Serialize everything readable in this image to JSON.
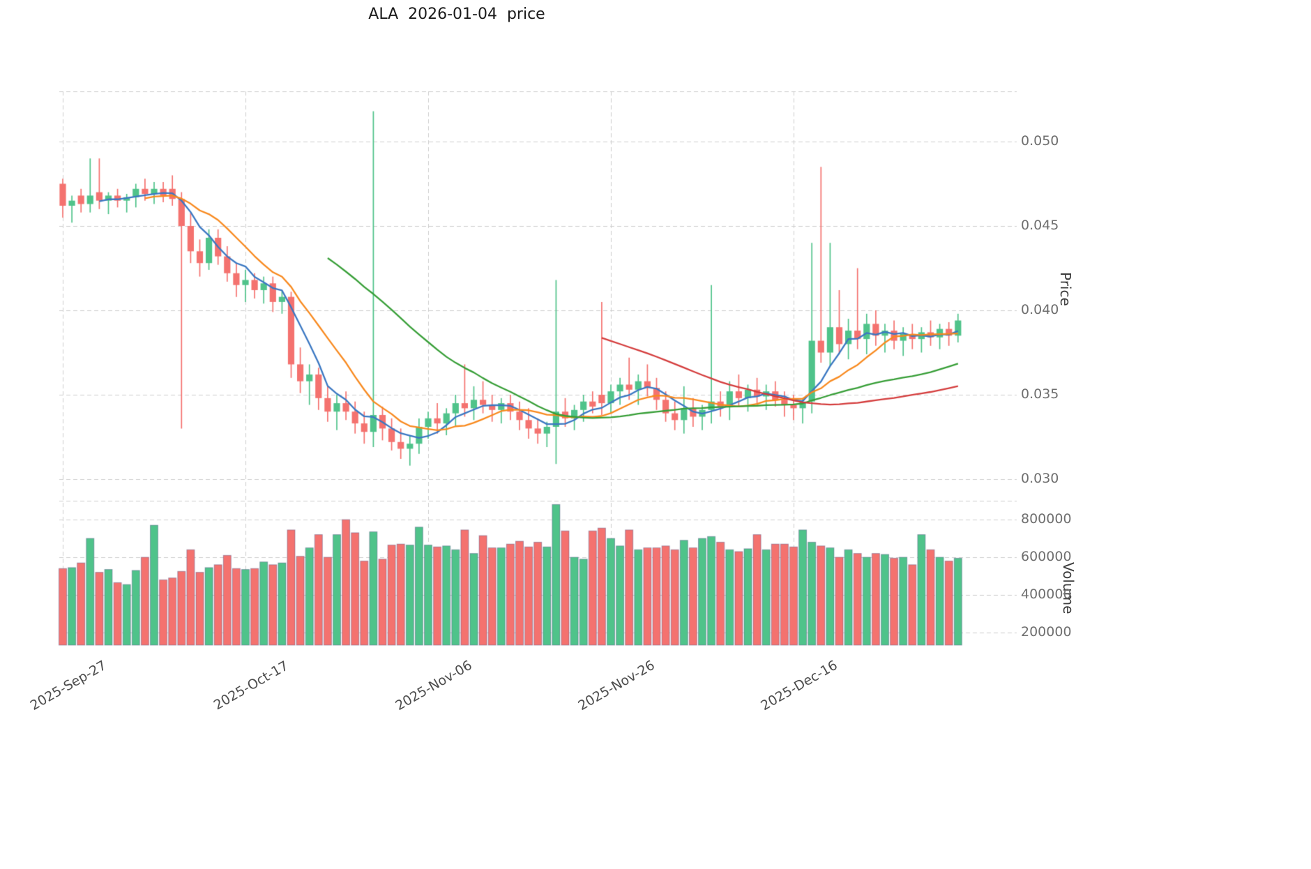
{
  "header": {
    "title": "ALA  2026-01-04  price"
  },
  "chart_data": {
    "type": "candlestick",
    "title": "ALA  2026-01-04  price",
    "panels": [
      "price",
      "volume"
    ],
    "ylabel_right": "Price",
    "volume_label": "Volume",
    "price_axis": {
      "ticks": [
        0.03,
        0.035,
        0.04,
        0.045,
        0.05
      ],
      "decimals": 3
    },
    "volume_axis": {
      "ticks": [
        200000,
        400000,
        600000,
        800000
      ]
    },
    "x_axis": {
      "tick_labels": [
        {
          "label": "2025-Sep-27",
          "candle_index": 0
        },
        {
          "label": "2025-Oct-17",
          "candle_index": 20
        },
        {
          "label": "2025-Nov-06",
          "candle_index": 40
        },
        {
          "label": "2025-Nov-26",
          "candle_index": 60
        },
        {
          "label": "2025-Dec-16",
          "candle_index": 80
        }
      ]
    },
    "moving_averages": [
      {
        "name": "sma-5",
        "period": 5,
        "color": "#3a77c2"
      },
      {
        "name": "sma-10",
        "period": 10,
        "color": "#f8891e"
      },
      {
        "name": "sma-30",
        "period": 30,
        "color": "#379e37"
      },
      {
        "name": "sma-60",
        "period": 60,
        "color": "#d43d3d"
      }
    ],
    "colors": {
      "up": "#4fc38a",
      "down": "#f4726f",
      "grid": "#cdcdcd",
      "volume_edge": "rgba(80,80,128,0.45)"
    },
    "candles": {
      "columns": [
        "open",
        "high",
        "low",
        "close",
        "volume"
      ],
      "rows": [
        [
          0.0475,
          0.0478,
          0.0455,
          0.0462,
          540000
        ],
        [
          0.0462,
          0.0468,
          0.0452,
          0.0465,
          545000
        ],
        [
          0.0468,
          0.0472,
          0.0458,
          0.0463,
          570000
        ],
        [
          0.0463,
          0.049,
          0.0458,
          0.0468,
          700000
        ],
        [
          0.047,
          0.049,
          0.046,
          0.0465,
          520000
        ],
        [
          0.0465,
          0.047,
          0.0457,
          0.0468,
          535000
        ],
        [
          0.0468,
          0.0472,
          0.0461,
          0.0465,
          465000
        ],
        [
          0.0465,
          0.0469,
          0.0458,
          0.0467,
          455000
        ],
        [
          0.0467,
          0.0475,
          0.0461,
          0.0472,
          530000
        ],
        [
          0.0472,
          0.0478,
          0.0465,
          0.0469,
          600000
        ],
        [
          0.0469,
          0.0476,
          0.0463,
          0.0472,
          770000
        ],
        [
          0.0472,
          0.0476,
          0.0464,
          0.0468,
          480000
        ],
        [
          0.0472,
          0.048,
          0.0462,
          0.0466,
          490000
        ],
        [
          0.0466,
          0.047,
          0.033,
          0.045,
          525000
        ],
        [
          0.045,
          0.0458,
          0.0428,
          0.0435,
          640000
        ],
        [
          0.0435,
          0.0442,
          0.042,
          0.0428,
          520000
        ],
        [
          0.0428,
          0.0448,
          0.0424,
          0.0443,
          545000
        ],
        [
          0.0443,
          0.0448,
          0.0427,
          0.0432,
          560000
        ],
        [
          0.0432,
          0.0438,
          0.0417,
          0.0422,
          610000
        ],
        [
          0.0422,
          0.0428,
          0.0408,
          0.0415,
          540000
        ],
        [
          0.0415,
          0.0424,
          0.0405,
          0.0418,
          535000
        ],
        [
          0.0418,
          0.0422,
          0.0407,
          0.0412,
          540000
        ],
        [
          0.0412,
          0.042,
          0.0404,
          0.0416,
          575000
        ],
        [
          0.0416,
          0.042,
          0.0399,
          0.0405,
          560000
        ],
        [
          0.0405,
          0.0412,
          0.0398,
          0.0408,
          570000
        ],
        [
          0.0408,
          0.0411,
          0.036,
          0.0368,
          745000
        ],
        [
          0.0368,
          0.0378,
          0.0351,
          0.0358,
          605000
        ],
        [
          0.0358,
          0.0368,
          0.0344,
          0.0362,
          650000
        ],
        [
          0.0362,
          0.0366,
          0.0341,
          0.0348,
          720000
        ],
        [
          0.0348,
          0.0355,
          0.0334,
          0.034,
          600000
        ],
        [
          0.034,
          0.035,
          0.0329,
          0.0345,
          720000
        ],
        [
          0.0345,
          0.0352,
          0.0335,
          0.034,
          800000
        ],
        [
          0.034,
          0.0346,
          0.0327,
          0.0333,
          730000
        ],
        [
          0.0333,
          0.034,
          0.0321,
          0.0328,
          580000
        ],
        [
          0.0328,
          0.0518,
          0.0319,
          0.0338,
          735000
        ],
        [
          0.0338,
          0.0343,
          0.0323,
          0.033,
          590000
        ],
        [
          0.033,
          0.0336,
          0.0317,
          0.0322,
          665000
        ],
        [
          0.0322,
          0.033,
          0.0312,
          0.0318,
          670000
        ],
        [
          0.0318,
          0.0326,
          0.0308,
          0.0321,
          665000
        ],
        [
          0.0321,
          0.0336,
          0.0315,
          0.0331,
          760000
        ],
        [
          0.0331,
          0.034,
          0.0324,
          0.0336,
          665000
        ],
        [
          0.0336,
          0.0345,
          0.0327,
          0.0333,
          655000
        ],
        [
          0.0333,
          0.0342,
          0.0326,
          0.0339,
          660000
        ],
        [
          0.0339,
          0.035,
          0.0331,
          0.0345,
          640000
        ],
        [
          0.0345,
          0.0368,
          0.0337,
          0.0342,
          745000
        ],
        [
          0.0342,
          0.0355,
          0.0335,
          0.0347,
          620000
        ],
        [
          0.0347,
          0.0358,
          0.0339,
          0.0344,
          715000
        ],
        [
          0.0344,
          0.035,
          0.0334,
          0.0341,
          650000
        ],
        [
          0.0341,
          0.0348,
          0.0333,
          0.0345,
          650000
        ],
        [
          0.0345,
          0.035,
          0.0335,
          0.034,
          670000
        ],
        [
          0.034,
          0.0346,
          0.0329,
          0.0335,
          685000
        ],
        [
          0.0335,
          0.0342,
          0.0324,
          0.033,
          655000
        ],
        [
          0.033,
          0.0336,
          0.0321,
          0.0327,
          680000
        ],
        [
          0.0327,
          0.0334,
          0.0319,
          0.0331,
          655000
        ],
        [
          0.0331,
          0.0418,
          0.0309,
          0.034,
          880000
        ],
        [
          0.034,
          0.0348,
          0.0331,
          0.0336,
          740000
        ],
        [
          0.0336,
          0.0344,
          0.0329,
          0.0341,
          600000
        ],
        [
          0.0341,
          0.035,
          0.0334,
          0.0346,
          590000
        ],
        [
          0.0346,
          0.0352,
          0.0339,
          0.0343,
          740000
        ],
        [
          0.035,
          0.0405,
          0.0338,
          0.0345,
          755000
        ],
        [
          0.0345,
          0.0356,
          0.0339,
          0.0352,
          700000
        ],
        [
          0.0352,
          0.036,
          0.0344,
          0.0356,
          660000
        ],
        [
          0.0356,
          0.0372,
          0.0347,
          0.0353,
          745000
        ],
        [
          0.0353,
          0.0362,
          0.0344,
          0.0358,
          640000
        ],
        [
          0.0358,
          0.0368,
          0.0349,
          0.0354,
          650000
        ],
        [
          0.0354,
          0.036,
          0.0341,
          0.0347,
          650000
        ],
        [
          0.0347,
          0.0352,
          0.0334,
          0.0339,
          660000
        ],
        [
          0.0339,
          0.0346,
          0.0329,
          0.0335,
          640000
        ],
        [
          0.0335,
          0.0355,
          0.0327,
          0.0342,
          690000
        ],
        [
          0.0342,
          0.0348,
          0.0331,
          0.0337,
          650000
        ],
        [
          0.0337,
          0.0344,
          0.0329,
          0.0341,
          700000
        ],
        [
          0.0341,
          0.0415,
          0.0333,
          0.0346,
          710000
        ],
        [
          0.0346,
          0.0352,
          0.0337,
          0.0343,
          680000
        ],
        [
          0.0343,
          0.0358,
          0.0335,
          0.0352,
          640000
        ],
        [
          0.0352,
          0.0362,
          0.0343,
          0.0348,
          630000
        ],
        [
          0.0348,
          0.0356,
          0.034,
          0.0353,
          645000
        ],
        [
          0.0353,
          0.036,
          0.0344,
          0.0349,
          720000
        ],
        [
          0.0349,
          0.0356,
          0.0341,
          0.0352,
          640000
        ],
        [
          0.0352,
          0.0358,
          0.0343,
          0.0347,
          670000
        ],
        [
          0.0347,
          0.0352,
          0.0337,
          0.0344,
          670000
        ],
        [
          0.0344,
          0.035,
          0.0335,
          0.0342,
          655000
        ],
        [
          0.0342,
          0.0348,
          0.0333,
          0.0346,
          745000
        ],
        [
          0.0346,
          0.044,
          0.0339,
          0.0382,
          680000
        ],
        [
          0.0382,
          0.0485,
          0.0369,
          0.0375,
          660000
        ],
        [
          0.0375,
          0.044,
          0.0367,
          0.039,
          650000
        ],
        [
          0.039,
          0.0412,
          0.0374,
          0.038,
          600000
        ],
        [
          0.038,
          0.0395,
          0.0371,
          0.0388,
          640000
        ],
        [
          0.0388,
          0.0425,
          0.0377,
          0.0383,
          620000
        ],
        [
          0.0383,
          0.0398,
          0.0374,
          0.0392,
          600000
        ],
        [
          0.0392,
          0.04,
          0.0379,
          0.0385,
          620000
        ],
        [
          0.0385,
          0.0392,
          0.0375,
          0.0388,
          615000
        ],
        [
          0.0388,
          0.0394,
          0.0377,
          0.0382,
          595000
        ],
        [
          0.0382,
          0.039,
          0.0373,
          0.0386,
          600000
        ],
        [
          0.0386,
          0.0392,
          0.0377,
          0.0383,
          560000
        ],
        [
          0.0383,
          0.039,
          0.0375,
          0.0387,
          720000
        ],
        [
          0.0387,
          0.0394,
          0.0379,
          0.0384,
          640000
        ],
        [
          0.0384,
          0.0392,
          0.0377,
          0.0389,
          600000
        ],
        [
          0.0389,
          0.0393,
          0.0379,
          0.0385,
          580000
        ],
        [
          0.0385,
          0.0398,
          0.0381,
          0.0394,
          595000
        ]
      ]
    }
  }
}
